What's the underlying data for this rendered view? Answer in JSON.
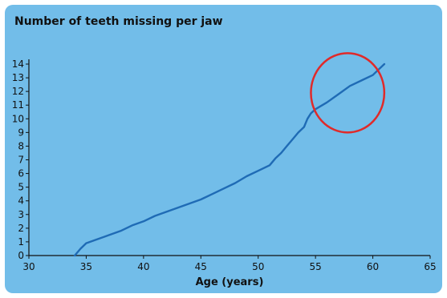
{
  "chart_data": {
    "type": "line",
    "title": "Number of teeth missing per jaw",
    "xlabel": "Age (years)",
    "ylabel": "",
    "xlim": [
      30,
      65
    ],
    "ylim": [
      0,
      14
    ],
    "x_ticks": [
      30,
      35,
      40,
      45,
      50,
      55,
      60,
      65
    ],
    "y_ticks": [
      0,
      1,
      2,
      3,
      4,
      5,
      6,
      7,
      8,
      9,
      10,
      11,
      12,
      13,
      14
    ],
    "grid": false,
    "series": [
      {
        "color": "#1f6bb5",
        "points": [
          [
            34,
            0
          ],
          [
            34.5,
            0.5
          ],
          [
            35,
            0.9
          ],
          [
            36,
            1.2
          ],
          [
            37,
            1.5
          ],
          [
            38,
            1.8
          ],
          [
            39,
            2.2
          ],
          [
            40,
            2.5
          ],
          [
            41,
            2.9
          ],
          [
            42,
            3.2
          ],
          [
            43,
            3.5
          ],
          [
            44,
            3.8
          ],
          [
            45,
            4.1
          ],
          [
            46,
            4.5
          ],
          [
            47,
            4.9
          ],
          [
            48,
            5.3
          ],
          [
            49,
            5.8
          ],
          [
            50,
            6.2
          ],
          [
            51,
            6.6
          ],
          [
            51.5,
            7.1
          ],
          [
            52,
            7.5
          ],
          [
            52.5,
            8.0
          ],
          [
            53,
            8.5
          ],
          [
            53.5,
            9.0
          ],
          [
            54,
            9.4
          ],
          [
            54.3,
            10.0
          ],
          [
            54.6,
            10.4
          ],
          [
            55,
            10.7
          ],
          [
            56,
            11.2
          ],
          [
            57,
            11.8
          ],
          [
            58,
            12.4
          ],
          [
            59,
            12.8
          ],
          [
            60,
            13.2
          ],
          [
            60.5,
            13.6
          ],
          [
            61,
            14
          ]
        ]
      }
    ],
    "annotation": {
      "shape": "ellipse",
      "color": "#e02a2a",
      "center": [
        57.8,
        11.9
      ],
      "radius_x": 3.2,
      "radius_y": 2.9
    },
    "background_color": "#72bde9",
    "axis_color": "#111111"
  }
}
